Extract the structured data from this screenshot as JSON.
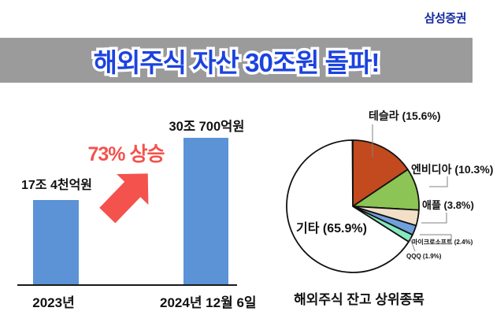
{
  "brand": {
    "name": "삼성증권",
    "color": "#1428A0"
  },
  "banner": {
    "text": "해외주식 자산 30조원 돌파!",
    "bg_color": "#9B9B9B",
    "text_color": "#1C43DF"
  },
  "chart_data": [
    {
      "type": "bar",
      "title": "해외주식 자산 30조원 돌파!",
      "categories": [
        "2023년",
        "2024년 12월 6일"
      ],
      "values": [
        17.4,
        30.07
      ],
      "unit": "조원",
      "value_labels": [
        "17조 4천억원",
        "30조 700억원"
      ],
      "annotation": "73% 상승",
      "bar_color": "#5B93D6",
      "annotation_color": "#F4524D",
      "arrow_color": "#F4524D",
      "axis_color": "#1a1a1a"
    },
    {
      "type": "pie",
      "title": "해외주식 잔고 상위종목",
      "start_angle_deg": 0,
      "direction": "clockwise",
      "slices": [
        {
          "key": "tesla",
          "name": "테슬라",
          "value": 15.6,
          "label": "테슬라 (15.6%)",
          "color": "#C24A1E"
        },
        {
          "key": "nvidia",
          "name": "엔비디아",
          "value": 10.3,
          "label": "엔비디아 (10.3%)",
          "color": "#8CC455"
        },
        {
          "key": "apple",
          "name": "애플",
          "value": 3.8,
          "label": "애플 (3.8%)",
          "color": "#F2DFC8"
        },
        {
          "key": "microsoft",
          "name": "마이크로소프트",
          "value": 2.4,
          "label": "마이크로소프트 (2.4%)",
          "color": "#6FA0DC"
        },
        {
          "key": "qqq",
          "name": "QQQ",
          "value": 1.9,
          "label": "QQQ (1.9%)",
          "color": "#85E8BE"
        },
        {
          "key": "others",
          "name": "기타",
          "value": 65.9,
          "label": "기타 (65.9%)",
          "color": "#FFFFFF"
        }
      ]
    }
  ]
}
